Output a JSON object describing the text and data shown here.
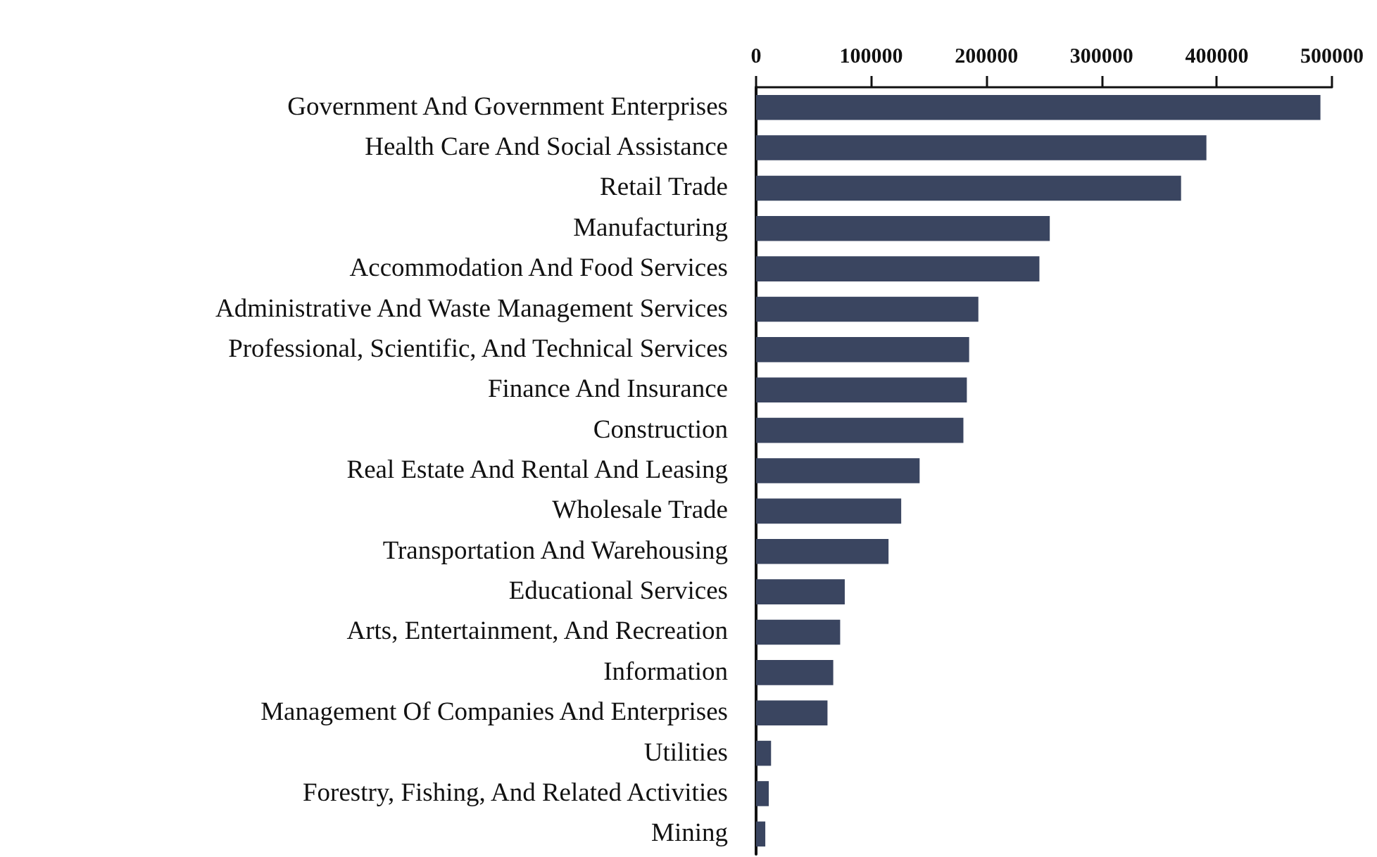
{
  "chart_data": {
    "type": "bar",
    "orientation": "horizontal",
    "categories": [
      "Government And Government Enterprises",
      "Health Care And Social Assistance",
      "Retail Trade",
      "Manufacturing",
      "Accommodation And Food Services",
      "Administrative And Waste Management Services",
      "Professional, Scientific, And Technical Services",
      "Finance And Insurance",
      "Construction",
      "Real Estate And Rental And Leasing",
      "Wholesale Trade",
      "Transportation And Warehousing",
      "Educational Services",
      "Arts, Entertainment, And Recreation",
      "Information",
      "Management Of Companies And Enterprises",
      "Utilities",
      "Forestry, Fishing, And Related Activities",
      "Mining"
    ],
    "values": [
      490000,
      391000,
      369000,
      255000,
      246000,
      193000,
      185000,
      183000,
      180000,
      142000,
      126000,
      115000,
      77000,
      73000,
      67000,
      62000,
      13000,
      11000,
      8000
    ],
    "color": "#3a4560",
    "xlim": [
      0,
      500000
    ],
    "xticks": [
      0,
      100000,
      200000,
      300000,
      400000,
      500000
    ],
    "grid": false
  }
}
